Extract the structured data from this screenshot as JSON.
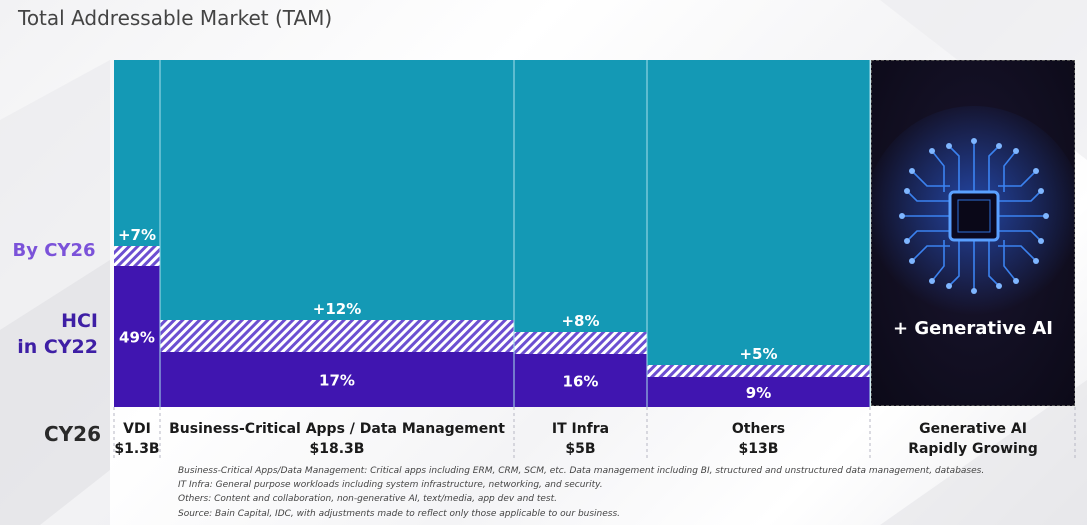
{
  "title": "Total Addressable Market (TAM)",
  "left_labels": {
    "by_cy26": "By CY26",
    "hci_line1": "HCI",
    "hci_line2": "in CY22",
    "cy26": "CY26"
  },
  "colors": {
    "tam": "#1499b5",
    "hci": "#4015b0",
    "growth_hatch": "#6c4fd1",
    "background_panel": "#120f22"
  },
  "chart_data": {
    "type": "marimekko",
    "title": "Total Addressable Market (TAM)",
    "axis_label": "CY26",
    "categories": [
      {
        "name": "VDI",
        "tam_label": "$1.3B",
        "hci_pct": 49,
        "hci_label": "49%",
        "growth_pct": 7,
        "growth_label": "+7%"
      },
      {
        "name": "Business-Critical Apps / Data Management",
        "tam_label": "$18.3B",
        "hci_pct": 17,
        "hci_label": "17%",
        "growth_pct": 12,
        "growth_label": "+12%"
      },
      {
        "name": "IT Infra",
        "tam_label": "$5B",
        "hci_pct": 16,
        "hci_label": "16%",
        "growth_pct": 8,
        "growth_label": "+8%"
      },
      {
        "name": "Others",
        "tam_label": "$13B",
        "hci_pct": 9,
        "hci_label": "9%",
        "growth_pct": 5,
        "growth_label": "+5%"
      }
    ],
    "extra_category": {
      "name_line1": "Generative AI",
      "name_line2": "Rapidly Growing",
      "panel_label": "+ Generative AI"
    }
  },
  "footnotes": [
    "Business-Critical Apps/Data Management: Critical apps including ERM, CRM, SCM, etc. Data management including BI, structured and unstructured data management, databases.",
    "IT Infra: General purpose workloads including system infrastructure, networking, and security.",
    "Others: Content and collaboration, non-generative AI, text/media, app dev and test.",
    "Source: Bain Capital, IDC, with adjustments made to reflect only those applicable to our business."
  ]
}
